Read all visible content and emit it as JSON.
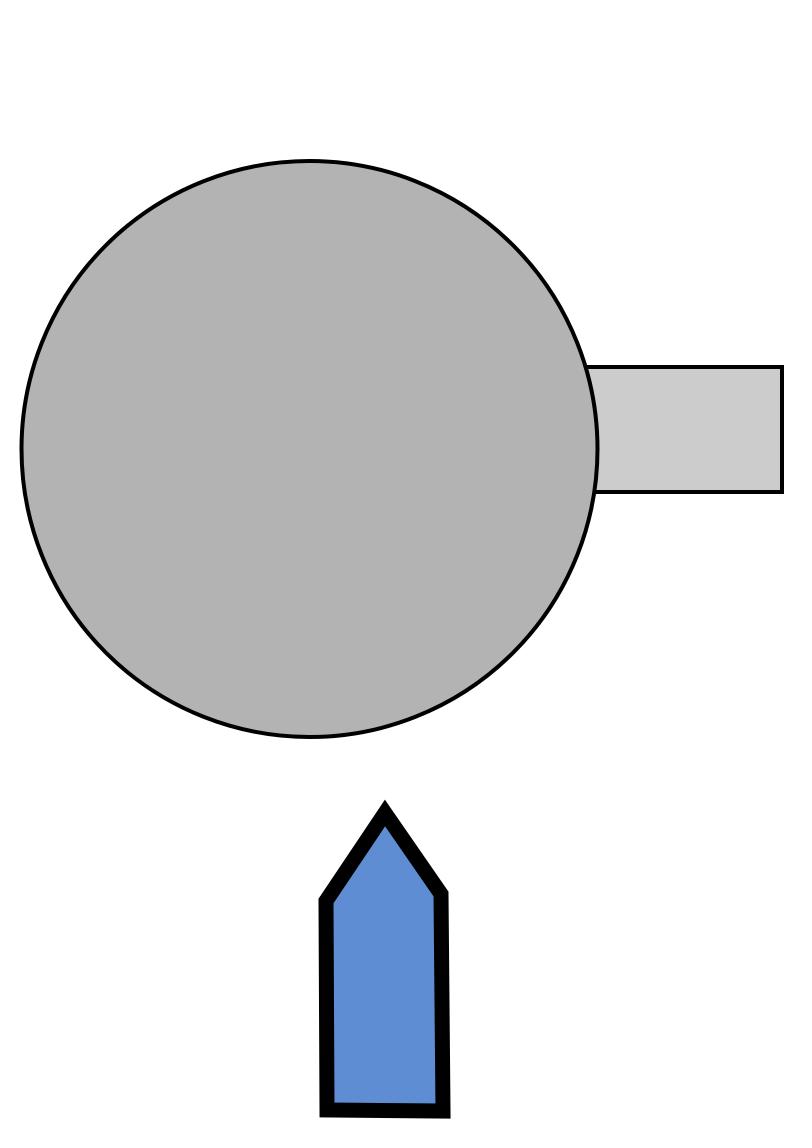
{
  "diagram": {
    "background_color": "#ffffff",
    "shapes": [
      {
        "name": "large-circle",
        "kind": "circle",
        "fill": "#b3b3b3",
        "stroke": "#000000"
      },
      {
        "name": "side-rectangle",
        "kind": "rectangle",
        "fill": "#cccccc",
        "stroke": "#000000"
      },
      {
        "name": "arrow-pentagon",
        "kind": "pentagon",
        "fill": "#5f8dd3",
        "stroke": "#000000",
        "direction": "up"
      }
    ]
  }
}
